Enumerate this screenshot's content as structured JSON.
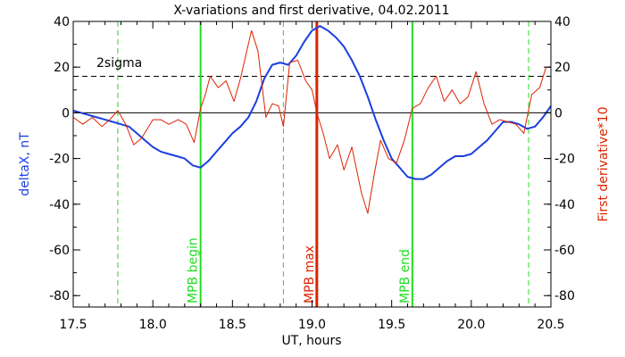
{
  "chart_data": {
    "type": "line",
    "title": "X-variations and first derivative, 04.02.2011",
    "xlabel": "UT, hours",
    "ylabel_left": "deltaX, nT",
    "ylabel_right": "First derivative*10",
    "xlim": [
      17.5,
      20.5
    ],
    "ylim": [
      -85,
      40
    ],
    "x_ticks": [
      "17.5",
      "18.0",
      "18.5",
      "19.0",
      "19.5",
      "20.0",
      "20.5"
    ],
    "y_ticks": [
      "40",
      "20",
      "0",
      "-20",
      "-40",
      "-60",
      "-80"
    ],
    "threshold": {
      "label": "2sigma",
      "value": 16
    },
    "colors": {
      "deltaX": "#1a3fe0",
      "derivative": "#dd2200",
      "green": "#22dd22",
      "red": "#dd2200"
    },
    "vlines": [
      {
        "x": 17.78,
        "style": "dashed",
        "color": "green"
      },
      {
        "x": 18.3,
        "style": "solid",
        "color": "green",
        "label": "MPB begin"
      },
      {
        "x": 18.82,
        "style": "dashed",
        "color": "green"
      },
      {
        "x": 19.03,
        "style": "solid",
        "color": "red",
        "label": "MPB max"
      },
      {
        "x": 19.63,
        "style": "solid",
        "color": "green",
        "label": "MPB end"
      },
      {
        "x": 20.36,
        "style": "dashed",
        "color": "green"
      }
    ],
    "series": [
      {
        "key": "deltaX",
        "x": [
          17.5,
          17.55,
          17.6,
          17.65,
          17.7,
          17.75,
          17.8,
          17.85,
          17.9,
          17.95,
          18.0,
          18.05,
          18.1,
          18.15,
          18.2,
          18.25,
          18.3,
          18.35,
          18.4,
          18.45,
          18.5,
          18.55,
          18.6,
          18.65,
          18.7,
          18.75,
          18.8,
          18.85,
          18.9,
          18.95,
          19.0,
          19.05,
          19.1,
          19.15,
          19.2,
          19.25,
          19.3,
          19.35,
          19.4,
          19.45,
          19.5,
          19.55,
          19.6,
          19.65,
          19.7,
          19.75,
          19.8,
          19.85,
          19.9,
          19.95,
          20.0,
          20.05,
          20.1,
          20.15,
          20.2,
          20.25,
          20.3,
          20.35,
          20.4,
          20.45,
          20.5
        ],
        "y": [
          1,
          0,
          -1,
          -2,
          -3,
          -4,
          -5,
          -6,
          -9,
          -12,
          -15,
          -17,
          -18,
          -19,
          -20,
          -23,
          -24,
          -21,
          -17,
          -13,
          -9,
          -6,
          -2,
          5,
          15,
          21,
          22,
          21,
          25,
          31,
          36,
          38,
          36,
          33,
          29,
          23,
          16,
          7,
          -3,
          -12,
          -20,
          -24,
          -28,
          -29,
          -29,
          -27,
          -24,
          -21,
          -19,
          -19,
          -18,
          -15,
          -12,
          -8,
          -4,
          -4,
          -5,
          -7,
          -6,
          -2,
          3
        ]
      },
      {
        "key": "derivative",
        "x": [
          17.5,
          17.56,
          17.62,
          17.68,
          17.73,
          17.78,
          17.83,
          17.88,
          17.93,
          18.0,
          18.05,
          18.1,
          18.16,
          18.21,
          18.26,
          18.3,
          18.33,
          18.36,
          18.41,
          18.46,
          18.51,
          18.55,
          18.58,
          18.62,
          18.66,
          18.71,
          18.75,
          18.79,
          18.82,
          18.86,
          18.91,
          18.96,
          19.0,
          19.03,
          19.07,
          19.11,
          19.16,
          19.2,
          19.25,
          19.31,
          19.35,
          19.39,
          19.43,
          19.48,
          19.53,
          19.58,
          19.63,
          19.68,
          19.73,
          19.78,
          19.83,
          19.88,
          19.93,
          19.98,
          20.03,
          20.08,
          20.13,
          20.18,
          20.23,
          20.28,
          20.33,
          20.38,
          20.43,
          20.47,
          20.5
        ],
        "y": [
          -2,
          -5,
          -2,
          -6,
          -3,
          1,
          -5,
          -14,
          -11,
          -3,
          -3,
          -5,
          -3,
          -5,
          -13,
          2,
          8,
          16,
          11,
          14,
          5,
          15,
          24,
          36,
          27,
          -2,
          4,
          3,
          -6,
          22,
          23,
          14,
          10,
          0,
          -9,
          -20,
          -14,
          -25,
          -15,
          -35,
          -44,
          -27,
          -12,
          -20,
          -22,
          -12,
          2,
          4,
          11,
          16,
          5,
          10,
          4,
          7,
          18,
          4,
          -5,
          -3,
          -4,
          -5,
          -9,
          8,
          11,
          20,
          20
        ]
      }
    ]
  }
}
